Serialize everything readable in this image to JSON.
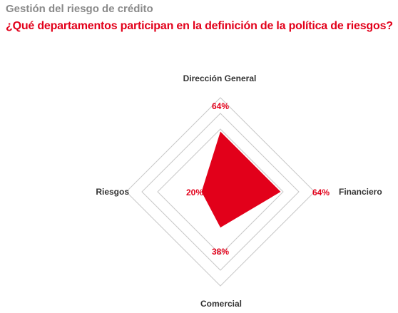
{
  "header": {
    "subtitle": "Gestión del riesgo de crédito",
    "title": "¿Qué departamentos participan en la definición de la política de riesgos?"
  },
  "colors": {
    "accent": "#e2001a",
    "grid": "#c8c8c8",
    "label": "#333333",
    "subtitle": "#8a8a8a"
  },
  "chart_data": {
    "type": "radar",
    "title": "¿Qué departamentos participan en la definición de la política de riesgos?",
    "axes": [
      "Dirección General",
      "Financiero",
      "Comercial",
      "Riesgos"
    ],
    "values": [
      64,
      64,
      38,
      20
    ],
    "value_labels": [
      "64%",
      "64%",
      "38%",
      "20%"
    ],
    "unit": "%",
    "range": [
      0,
      100
    ],
    "rings": 3,
    "grid": true
  }
}
